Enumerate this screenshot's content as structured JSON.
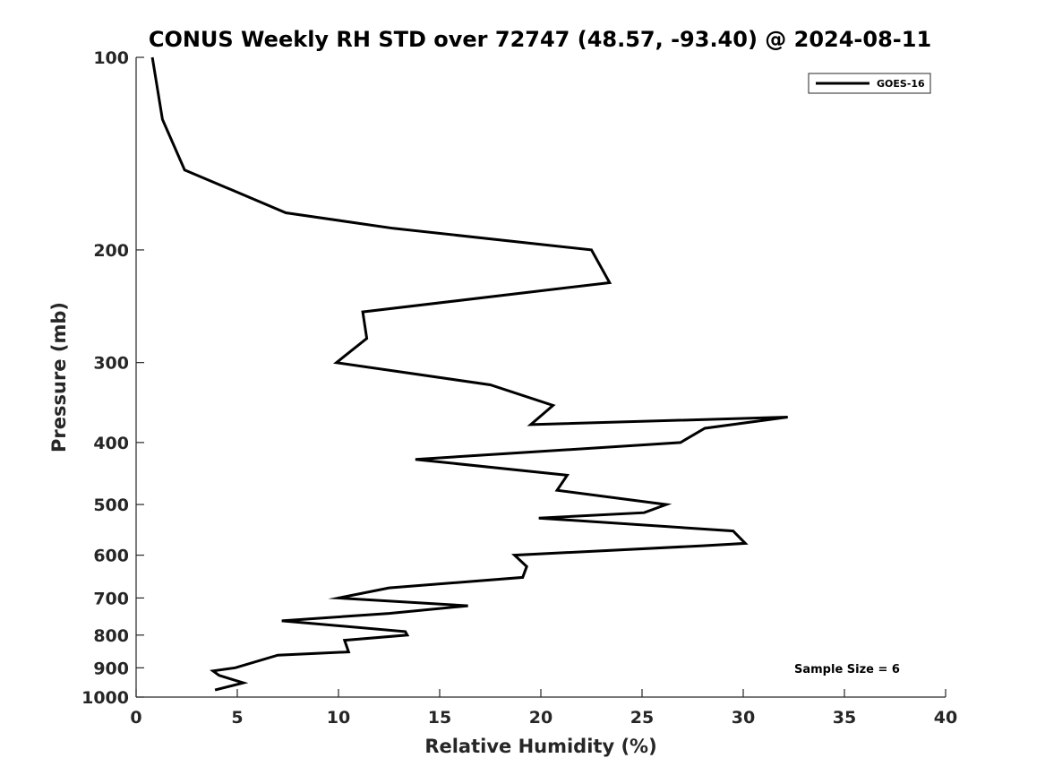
{
  "chart_data": {
    "type": "line",
    "title": "CONUS Weekly RH STD over 72747 (48.57, -93.40) @ 2024-08-11",
    "xlabel": "Relative Humidity (%)",
    "ylabel": "Pressure (mb)",
    "xlim": [
      0,
      40
    ],
    "ylim": [
      100,
      1000
    ],
    "yscale": "log",
    "y_reversed": true,
    "grid": false,
    "legend_position": "top-right",
    "x_ticks": [
      0,
      5,
      10,
      15,
      20,
      25,
      30,
      35,
      40
    ],
    "y_ticks": [
      100,
      200,
      300,
      400,
      500,
      600,
      700,
      800,
      900,
      1000
    ],
    "annotation": "Sample Size = 6",
    "line_color": "#000000",
    "series": [
      {
        "name": "GOES-16",
        "x": [
          0.8,
          1.3,
          2.4,
          7.4,
          12.7,
          22.5,
          23.4,
          11.2,
          11.4,
          9.9,
          17.5,
          20.6,
          19.5,
          32.2,
          28.1,
          26.9,
          13.8,
          21.3,
          20.8,
          26.2,
          25.1,
          19.9,
          29.5,
          30.1,
          28.0,
          18.7,
          19.3,
          19.1,
          12.5,
          10.0,
          16.4,
          12.5,
          7.2,
          13.3,
          13.4,
          10.3,
          10.5,
          7.0,
          4.9,
          3.8,
          4.1,
          5.3,
          3.9
        ],
        "y": [
          100,
          125,
          150,
          175,
          185,
          200,
          225,
          250,
          275,
          300,
          325,
          350,
          375,
          365,
          380,
          400,
          425,
          450,
          475,
          500,
          515,
          525,
          550,
          575,
          580,
          600,
          625,
          650,
          675,
          700,
          720,
          740,
          760,
          790,
          800,
          815,
          850,
          860,
          900,
          910,
          925,
          950,
          975
        ]
      }
    ]
  }
}
